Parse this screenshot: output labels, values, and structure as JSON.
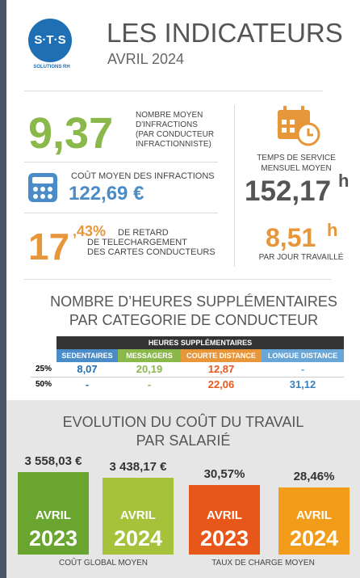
{
  "header": {
    "logo": "S·T·S",
    "logo_sub": "SOLUTIONS RH",
    "title": "LES INDICATEURS",
    "subtitle": "AVRIL 2024"
  },
  "infractions": {
    "value": "9,37",
    "label": [
      "NOMBRE MOYEN",
      "D'INFRACTIONS",
      "(PAR CONDUCTEUR",
      "INFRACTIONNISTE)"
    ]
  },
  "cost": {
    "label": "COÛT MOYEN DES INFRACTIONS",
    "value": "122,69 €"
  },
  "delay": {
    "value_int": "17",
    "value_dec": ",43%",
    "label": [
      "DE RETARD",
      "DE TELECHARGEMENT",
      "DES CARTES CONDUCTEURS"
    ]
  },
  "service": {
    "label": [
      "TEMPS DE SERVICE",
      "MENSUEL MOYEN"
    ],
    "value": "152,17",
    "unit": "h"
  },
  "daily": {
    "value": "8,51",
    "unit": "h",
    "label": "PAR JOUR TRAVAILLÉ"
  },
  "overtime": {
    "title": [
      "NOMBRE D’HEURES SUPPLÉMENTAIRES",
      "PAR CATEGORIE DE CONDUCTEUR"
    ],
    "table": {
      "group_header": "HEURES SUPPLÉMENTAIRES",
      "columns": [
        "SEDENTAIRES",
        "MESSAGERS",
        "COURTE DISTANCE",
        "LONGUE DISTANCE"
      ],
      "rows": [
        {
          "label": "25%",
          "values": [
            "8,07",
            "20,19",
            "12,87",
            "-"
          ]
        },
        {
          "label": "50%",
          "values": [
            "-",
            "-",
            "22,06",
            "31,12"
          ]
        }
      ]
    }
  },
  "evolution": {
    "title": [
      "EVOLUTION DU COÛT DU TRAVAIL",
      "PAR SALARIÉ"
    ],
    "cards": [
      {
        "value": "3 558,03 €",
        "label": "AVRIL",
        "year": "2023"
      },
      {
        "value": "3 438,17 €",
        "label": "AVRIL",
        "year": "2024"
      },
      {
        "value": "30,57%",
        "label": "AVRIL",
        "year": "2023"
      },
      {
        "value": "28,46%",
        "label": "AVRIL",
        "year": "2024"
      }
    ],
    "footers": [
      "COÛT GLOBAL MOYEN",
      "TAUX DE CHARGE MOYEN"
    ]
  }
}
